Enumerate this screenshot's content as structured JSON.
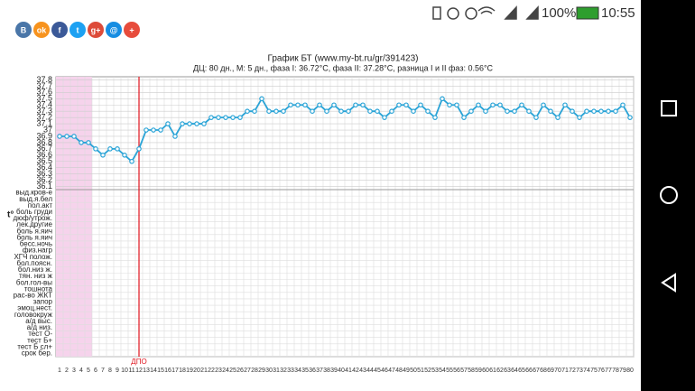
{
  "status_bar": {
    "battery": "100%",
    "time": "10:55"
  },
  "share_buttons": [
    "В",
    "ok",
    "f",
    "t",
    "g+",
    "@",
    "+"
  ],
  "chart_data": {
    "type": "line",
    "title": "График БТ (www.my-bt.ru/gr/391423)",
    "subtitle": "ДЦ: 80 дн., М: 5 дн., фаза I: 36.72°C, фаза II: 37.28°C, разница I и II фаз: 0.56°C",
    "y_label": "t°",
    "dpo_label": "ДПО",
    "dpo_start": 12,
    "shaded_days": [
      1,
      5
    ],
    "x": [
      1,
      2,
      3,
      4,
      5,
      6,
      7,
      8,
      9,
      10,
      11,
      12,
      13,
      14,
      15,
      16,
      17,
      18,
      19,
      20,
      21,
      22,
      23,
      24,
      25,
      26,
      27,
      28,
      29,
      30,
      31,
      32,
      33,
      34,
      35,
      36,
      37,
      38,
      39,
      40,
      41,
      42,
      43,
      44,
      45,
      46,
      47,
      48,
      49,
      50,
      51,
      52,
      53,
      54,
      55,
      56,
      57,
      58,
      59,
      60,
      61,
      62,
      63,
      64,
      65,
      66,
      67,
      68,
      69,
      70,
      71,
      72,
      73,
      74,
      75,
      76,
      77,
      78,
      79,
      80
    ],
    "xlim": [
      0.5,
      80.5
    ],
    "series": [
      {
        "name": "БТ",
        "color": "#29a3d6",
        "values": [
          36.9,
          36.9,
          36.9,
          36.8,
          36.8,
          36.7,
          36.6,
          36.7,
          36.7,
          36.6,
          36.5,
          36.7,
          37.0,
          37.0,
          37.0,
          37.1,
          36.9,
          37.1,
          37.1,
          37.1,
          37.1,
          37.2,
          37.2,
          37.2,
          37.2,
          37.2,
          37.3,
          37.3,
          37.5,
          37.3,
          37.3,
          37.3,
          37.4,
          37.4,
          37.4,
          37.3,
          37.4,
          37.3,
          37.4,
          37.3,
          37.3,
          37.4,
          37.4,
          37.3,
          37.3,
          37.2,
          37.3,
          37.4,
          37.4,
          37.3,
          37.4,
          37.3,
          37.2,
          37.5,
          37.4,
          37.4,
          37.2,
          37.3,
          37.4,
          37.3,
          37.4,
          37.4,
          37.3,
          37.3,
          37.4,
          37.3,
          37.2,
          37.4,
          37.3,
          37.2,
          37.4,
          37.3,
          37.2,
          37.3,
          37.3,
          37.3,
          37.3,
          37.3,
          37.4,
          37.2
        ]
      }
    ],
    "ylim": [
      36.05,
      37.85
    ],
    "yticks": [
      37.8,
      37.7,
      37.6,
      37.5,
      37.4,
      37.3,
      37.2,
      37.1,
      37,
      36.9,
      36.8,
      36.7,
      36.6,
      36.5,
      36.4,
      36.3,
      36.2,
      36.1
    ],
    "grid": true,
    "rows": [
      "выд.кров-е",
      "выд.я.бел",
      "пол.акт",
      "боль груди",
      "дюф/утрож.",
      "лек.другие",
      "боль я.яич",
      "боль я.яич",
      "бесс.ночь",
      "физ.нагр",
      "ХГЧ полож.",
      "бол.поясн.",
      "бол.низ ж.",
      "тян. низ ж",
      "бол.гол-вы",
      "тошнота",
      "рас-во ЖКТ",
      "запор",
      "эмоц.нест.",
      "головокруж",
      "а/д выс.",
      "а/д низ.",
      "тест О-",
      "тест Б+",
      "тест Б сл+",
      "срок бер."
    ]
  }
}
